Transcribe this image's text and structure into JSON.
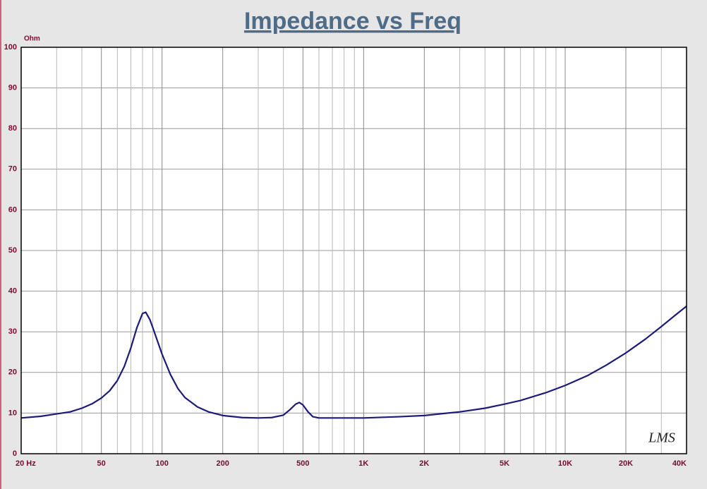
{
  "chart_data": {
    "type": "line",
    "title": "Impedance vs Freq",
    "ylabel": "Ohm",
    "watermark": "LMS",
    "xscale": "log",
    "color": "#1c1c78",
    "grid": true,
    "x": [
      20,
      25,
      30,
      35,
      40,
      45,
      50,
      55,
      60,
      65,
      70,
      75,
      80,
      83,
      87,
      90,
      100,
      110,
      120,
      130,
      150,
      170,
      200,
      250,
      300,
      350,
      400,
      430,
      460,
      480,
      500,
      530,
      560,
      600,
      800,
      1000,
      1500,
      2000,
      3000,
      4000,
      5000,
      6000,
      8000,
      10000,
      13000,
      16000,
      20000,
      25000,
      30000,
      35000,
      40000
    ],
    "values": [
      8.8,
      9.2,
      9.8,
      10.3,
      11.2,
      12.3,
      13.7,
      15.5,
      18,
      21.5,
      26,
      31,
      34.5,
      34.8,
      33,
      31,
      24.5,
      19.5,
      16,
      13.8,
      11.5,
      10.3,
      9.4,
      8.9,
      8.8,
      8.9,
      9.5,
      10.8,
      12.2,
      12.6,
      12,
      10.3,
      9.1,
      8.8,
      8.8,
      8.8,
      9.1,
      9.4,
      10.3,
      11.2,
      12.2,
      13.1,
      15,
      16.8,
      19.3,
      21.8,
      24.8,
      28.2,
      31.3,
      34,
      36.3
    ],
    "xlim": [
      20,
      40000
    ],
    "ylim": [
      0,
      100
    ],
    "xticks": [
      {
        "value": 20,
        "label": "20 Hz"
      },
      50,
      100,
      200,
      500,
      {
        "value": 1000,
        "label": "1K"
      },
      {
        "value": 2000,
        "label": "2K"
      },
      {
        "value": 5000,
        "label": "5K"
      },
      {
        "value": 10000,
        "label": "10K"
      },
      {
        "value": 20000,
        "label": "20K"
      },
      {
        "value": 40000,
        "label": "40K"
      }
    ],
    "x_minor_ticks": [
      30,
      40,
      60,
      70,
      80,
      90,
      300,
      400,
      600,
      700,
      800,
      900,
      3000,
      4000,
      6000,
      7000,
      8000,
      9000,
      30000
    ],
    "yticks": [
      0,
      10,
      20,
      30,
      40,
      50,
      60,
      70,
      80,
      90,
      100
    ]
  }
}
